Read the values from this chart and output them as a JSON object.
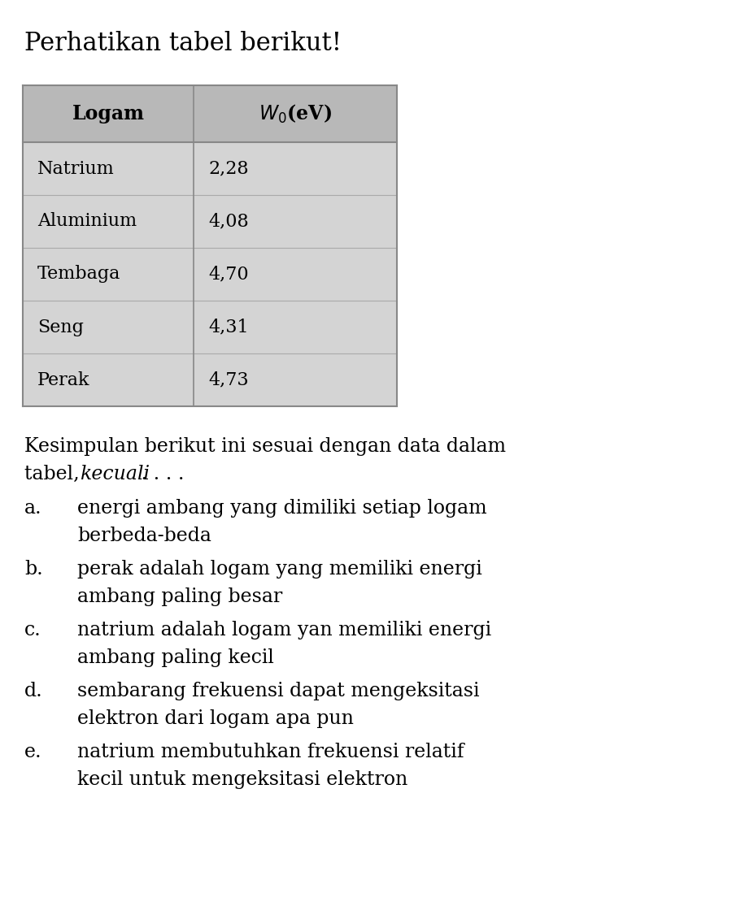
{
  "title": "Perhatikan tabel berikut!",
  "table_headers": [
    "Logam",
    "W₀(eV)"
  ],
  "table_rows": [
    [
      "Natrium",
      "2,28"
    ],
    [
      "Aluminium",
      "4,08"
    ],
    [
      "Tembaga",
      "4,70"
    ],
    [
      "Seng",
      "4,31"
    ],
    [
      "Perak",
      "4,73"
    ]
  ],
  "header_bg": "#b8b8b8",
  "row_bg": "#d4d4d4",
  "table_border": "#888888",
  "bg_color": "#ffffff",
  "text_color": "#000000",
  "font_size_title": 22,
  "font_size_table_header": 17,
  "font_size_table_body": 16,
  "font_size_body": 17,
  "line1": "Kesimpulan berikut ini sesuai dengan data dalam",
  "line2_normal": "tabel, ",
  "line2_italic": "kecuali",
  "line2_end": " . . . .",
  "options": [
    [
      "a.",
      "energi ambang yang dimiliki setiap logam\nberbeda-beda"
    ],
    [
      "b.",
      "perak adalah logam yang memiliki energi\nambang paling besar"
    ],
    [
      "c.",
      "natrium adalah logam yan memiliki energi\nambang paling kecil"
    ],
    [
      "d.",
      "sembarang frekuensi dapat mengeksitasi\nelektron dari logam apa pun"
    ],
    [
      "e.",
      "natrium membutuhkan frekuensi relatif\nkecil untuk mengeksitasi elektron"
    ]
  ]
}
